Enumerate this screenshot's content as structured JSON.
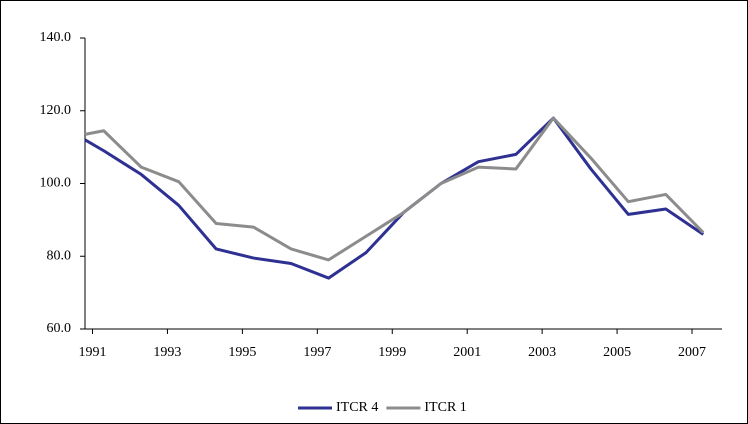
{
  "chart_data": {
    "type": "line",
    "x": [
      1990.8,
      1991.3,
      1992.3,
      1993.3,
      1994.3,
      1995.3,
      1996.3,
      1997.3,
      1998.3,
      1999.3,
      2000.3,
      2001.3,
      2002.3,
      2003.3,
      2004.3,
      2005.3,
      2006.3,
      2007.3
    ],
    "series": [
      {
        "name": "ITCR 4",
        "color": "#2e3192",
        "values": [
          112,
          109,
          102.5,
          94,
          82,
          79.5,
          78,
          74,
          81,
          92,
          100,
          106,
          108,
          118,
          104,
          91.5,
          93,
          86
        ]
      },
      {
        "name": "ITCR 1",
        "color": "#8c8c8c",
        "values": [
          113.5,
          114.5,
          104.5,
          100.5,
          89,
          88,
          82,
          79,
          85.5,
          92,
          100,
          104.5,
          104,
          118,
          107,
          95,
          97,
          86.5
        ]
      }
    ],
    "xlim": [
      1990.8,
      2007.8
    ],
    "xticks": [
      1991,
      1993,
      1995,
      1997,
      1999,
      2001,
      2003,
      2005,
      2007
    ],
    "ylim": [
      60,
      140
    ],
    "yticks": [
      {
        "value": 60,
        "label": "60.0"
      },
      {
        "value": 80,
        "label": "80.0"
      },
      {
        "value": 100,
        "label": "100.0"
      },
      {
        "value": 120,
        "label": "120.0"
      },
      {
        "value": 140,
        "label": "140.0"
      }
    ],
    "grid": false,
    "legend": "bottom"
  }
}
